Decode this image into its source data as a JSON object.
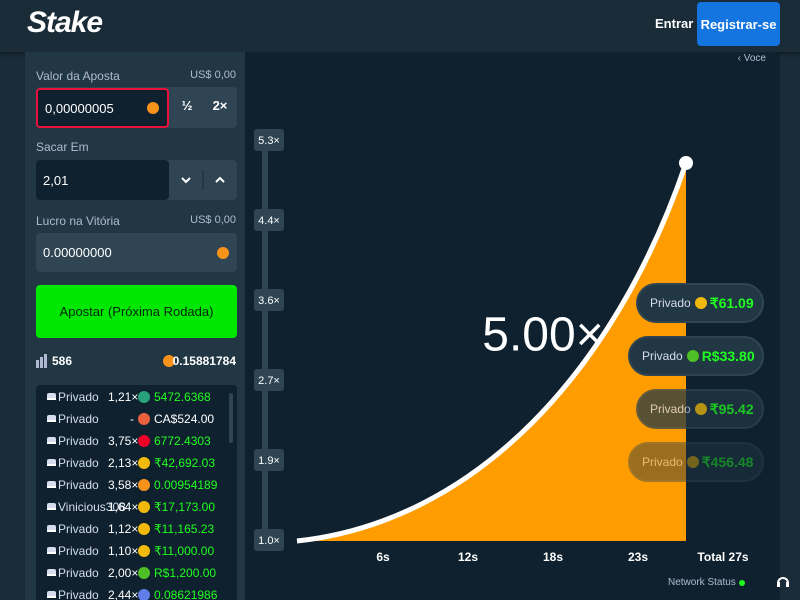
{
  "header": {
    "logo": "Stake",
    "login": "Entrar",
    "register": "Registrar-se"
  },
  "bet_form": {
    "bet_label": "Valor da Aposta",
    "bet_usd": "US$ 0,00",
    "bet_amount": "0,00000005",
    "half": "½",
    "double": "2×",
    "cashout_label": "Sacar Em",
    "cashout_value": "2,01",
    "profit_label": "Lucro na Vitória",
    "profit_usd": "US$ 0,00",
    "profit_amount": "0.00000000",
    "submit": "Apostar (Próxima Rodada)",
    "player_count": "586",
    "total_bet": "0.15881784"
  },
  "bets": [
    {
      "user": "Privado",
      "multiplier": "1,21×",
      "amount": "5472.6368",
      "won": true,
      "currency_color": "#26a17b"
    },
    {
      "user": "Privado",
      "multiplier": "-",
      "amount": "CA$524.00",
      "won": false,
      "currency_color": "#e8613c"
    },
    {
      "user": "Privado",
      "multiplier": "3,75×",
      "amount": "6772.4303",
      "won": true,
      "currency_color": "#ef0027"
    },
    {
      "user": "Privado",
      "multiplier": "2,13×",
      "amount": "₹42,692.03",
      "won": true,
      "currency_color": "#f0b90b"
    },
    {
      "user": "Privado",
      "multiplier": "3,58×",
      "amount": "0.00954189",
      "won": true,
      "currency_color": "#f7931a"
    },
    {
      "user": "Vinicious308",
      "multiplier": "1,64×",
      "amount": "₹17,173.00",
      "won": true,
      "currency_color": "#f0b90b"
    },
    {
      "user": "Privado",
      "multiplier": "1,12×",
      "amount": "₹11,165.23",
      "won": true,
      "currency_color": "#f0b90b"
    },
    {
      "user": "Privado",
      "multiplier": "1,10×",
      "amount": "₹11,000.00",
      "won": true,
      "currency_color": "#f0b90b"
    },
    {
      "user": "Privado",
      "multiplier": "2,00×",
      "amount": "R$1,200.00",
      "won": true,
      "currency_color": "#4fbf26"
    },
    {
      "user": "Privado",
      "multiplier": "2,44×",
      "amount": "0.08621986",
      "won": true,
      "currency_color": "#627eea"
    }
  ],
  "game": {
    "back_link": "‹ Voce",
    "multiplier": "5.00×",
    "y_labels": [
      "5.3×",
      "4.4×",
      "3.6×",
      "2.7×",
      "1.9×",
      "1.0×"
    ],
    "x_labels": [
      "6s",
      "12s",
      "18s",
      "23s",
      "Total 27s"
    ],
    "cashouts": [
      {
        "user": "Privado",
        "amount": "₹61.09",
        "currency_color": "#f0b90b"
      },
      {
        "user": "Privado",
        "amount": "R$33.80",
        "currency_color": "#4fbf26"
      },
      {
        "user": "Privado",
        "amount": "₹95.42",
        "currency_color": "#f0b90b"
      },
      {
        "user": "Privado",
        "amount": "₹456.48",
        "currency_color": "#f0b90b"
      }
    ],
    "network_status": "Network Status"
  }
}
